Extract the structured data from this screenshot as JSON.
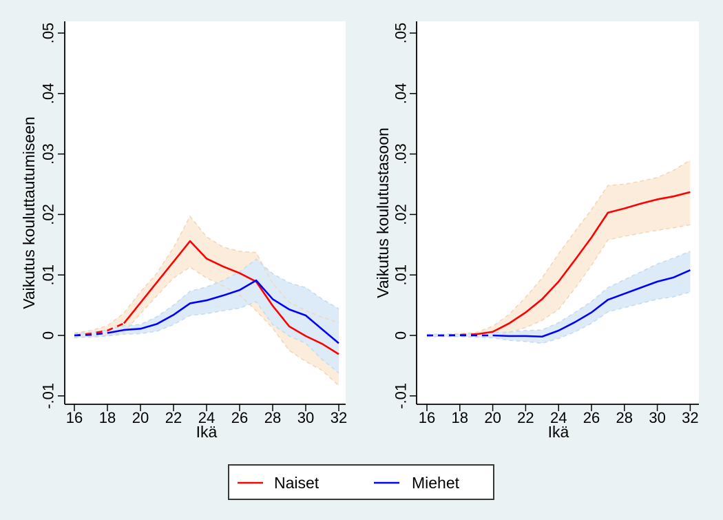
{
  "page": {
    "background": "#eaf2f3",
    "plot_background": "#ffffff",
    "axis_color": "#000000"
  },
  "legend": {
    "items": [
      {
        "label": "Naiset",
        "color": "#ff0000"
      },
      {
        "label": "Miehet",
        "color": "#0000ff"
      }
    ]
  },
  "chart_data": [
    {
      "type": "line",
      "panel": "left",
      "title": "",
      "xlabel": "Ikä",
      "ylabel": "Vaikutus kouluttautumiseen",
      "x": [
        16,
        17,
        18,
        19,
        20,
        21,
        22,
        23,
        24,
        25,
        26,
        27,
        28,
        29,
        30,
        31,
        32
      ],
      "x_ticks": [
        16,
        18,
        20,
        22,
        24,
        26,
        28,
        30,
        32
      ],
      "y_ticks": [
        -0.01,
        0,
        0.01,
        0.02,
        0.03,
        0.04,
        0.05
      ],
      "y_tick_labels": [
        "-.01",
        "0",
        ".01",
        ".02",
        ".03",
        ".04",
        ".05"
      ],
      "ylim": [
        -0.0114,
        0.0519
      ],
      "xlim": [
        16,
        32
      ],
      "grid": false,
      "legend_position": "bottom",
      "series": [
        {
          "name": "Naiset",
          "color": "#ff0000",
          "band_fill": "#fbecdb",
          "band_edge": "#f1d8ba",
          "solid_from_age": 19,
          "values": [
            0.0,
            0.0003,
            0.0008,
            0.002,
            0.0054,
            0.0088,
            0.0122,
            0.0156,
            0.0127,
            0.0114,
            0.0103,
            0.0089,
            0.0049,
            0.0015,
            -0.0001,
            -0.0014,
            -0.0031
          ],
          "ci_upper": [
            0.0004,
            0.0008,
            0.0016,
            0.0037,
            0.0072,
            0.0103,
            0.0145,
            0.0197,
            0.0163,
            0.0146,
            0.0139,
            0.0137,
            0.0086,
            0.0055,
            0.0041,
            0.003,
            0.0021
          ],
          "ci_lower": [
            -0.0004,
            -0.0002,
            0.0,
            0.0005,
            0.0036,
            0.0066,
            0.0095,
            0.0113,
            0.0095,
            0.0082,
            0.0067,
            0.0041,
            0.0012,
            -0.0025,
            -0.0043,
            -0.0058,
            -0.0083
          ]
        },
        {
          "name": "Miehet",
          "color": "#0000ff",
          "band_fill": "#dcebf7",
          "band_edge": "#c5dcf0",
          "solid_from_age": 18,
          "values": [
            0.0,
            0.0001,
            0.0004,
            0.0009,
            0.0011,
            0.0019,
            0.0034,
            0.0053,
            0.0058,
            0.0066,
            0.0075,
            0.0091,
            0.006,
            0.0043,
            0.0033,
            0.001,
            -0.0013
          ],
          "ci_upper": [
            0.0003,
            0.0005,
            0.0009,
            0.0016,
            0.0018,
            0.0031,
            0.005,
            0.0073,
            0.008,
            0.0091,
            0.0105,
            0.0126,
            0.0102,
            0.0087,
            0.0079,
            0.006,
            0.0044
          ],
          "ci_lower": [
            -0.0003,
            -0.0003,
            -0.0001,
            0.0002,
            0.0003,
            0.0007,
            0.0018,
            0.0033,
            0.0036,
            0.0041,
            0.0045,
            0.0056,
            0.0018,
            -0.0001,
            -0.0013,
            -0.004,
            -0.0062
          ]
        }
      ]
    },
    {
      "type": "line",
      "panel": "right",
      "title": "",
      "xlabel": "Ikä",
      "ylabel": "Vaikutus koulutustasoon",
      "x": [
        16,
        17,
        18,
        19,
        20,
        21,
        22,
        23,
        24,
        25,
        26,
        27,
        28,
        29,
        30,
        31,
        32
      ],
      "x_ticks": [
        16,
        18,
        20,
        22,
        24,
        26,
        28,
        30,
        32
      ],
      "y_ticks": [
        -0.01,
        0,
        0.01,
        0.02,
        0.03,
        0.04,
        0.05
      ],
      "y_tick_labels": [
        "-.01",
        "0",
        ".01",
        ".02",
        ".03",
        ".04",
        ".05"
      ],
      "ylim": [
        -0.0114,
        0.0519
      ],
      "xlim": [
        16,
        32
      ],
      "grid": false,
      "legend_position": "bottom",
      "series": [
        {
          "name": "Naiset",
          "color": "#ff0000",
          "band_fill": "#fbecdb",
          "band_edge": "#f1d8ba",
          "solid_from_age": 19,
          "values": [
            0.0,
            0.0,
            0.0001,
            0.0002,
            0.0006,
            0.002,
            0.0038,
            0.006,
            0.0089,
            0.0125,
            0.0162,
            0.0203,
            0.021,
            0.0218,
            0.0225,
            0.023,
            0.0237
          ],
          "ci_upper": [
            0.0002,
            0.0002,
            0.0003,
            0.0005,
            0.0015,
            0.0035,
            0.0063,
            0.0095,
            0.0135,
            0.0172,
            0.0208,
            0.0248,
            0.025,
            0.0255,
            0.0261,
            0.0273,
            0.029
          ],
          "ci_lower": [
            -0.0002,
            -0.0002,
            -0.0002,
            -0.0002,
            -0.0003,
            0.0005,
            0.0013,
            0.0025,
            0.0043,
            0.0078,
            0.0116,
            0.0158,
            0.0164,
            0.0169,
            0.0174,
            0.0178,
            0.0183
          ]
        },
        {
          "name": "Miehet",
          "color": "#0000ff",
          "band_fill": "#dcebf7",
          "band_edge": "#c5dcf0",
          "solid_from_age": 20,
          "values": [
            0.0,
            0.0,
            0.0,
            0.0,
            0.0,
            -0.0001,
            -0.0001,
            -0.0002,
            0.0008,
            0.0022,
            0.0038,
            0.0059,
            0.0069,
            0.0079,
            0.0089,
            0.0096,
            0.0108
          ],
          "ci_upper": [
            0.0002,
            0.0002,
            0.0002,
            0.0003,
            0.0004,
            0.0006,
            0.0008,
            0.0009,
            0.0021,
            0.0038,
            0.0056,
            0.0079,
            0.0092,
            0.0105,
            0.0118,
            0.0128,
            0.0139
          ],
          "ci_lower": [
            -0.0002,
            -0.0002,
            -0.0002,
            -0.0003,
            -0.0004,
            -0.0008,
            -0.001,
            -0.0013,
            -0.0005,
            0.0006,
            0.002,
            0.0039,
            0.0046,
            0.0053,
            0.006,
            0.0064,
            0.0072
          ]
        }
      ]
    }
  ]
}
